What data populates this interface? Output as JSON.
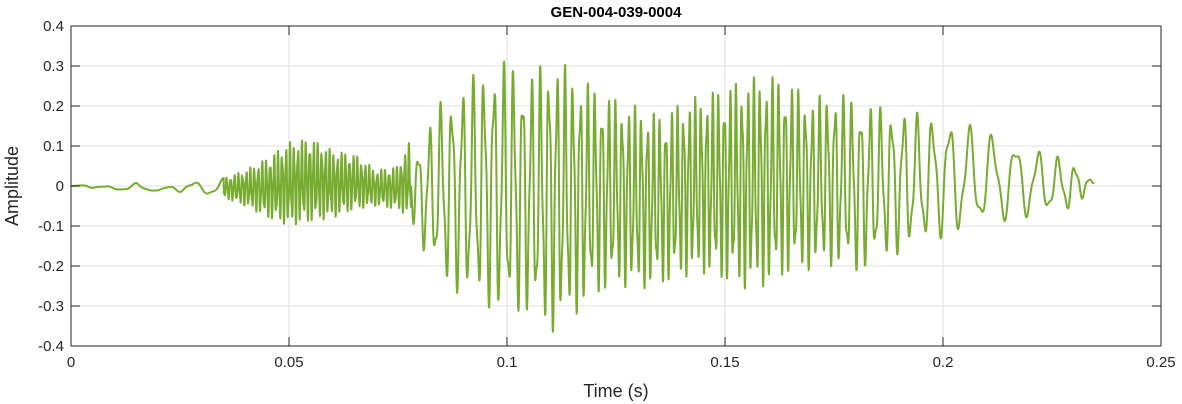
{
  "chart_data": {
    "type": "line",
    "title": "GEN-004-039-0004",
    "xlabel": "Time (s)",
    "ylabel": "Amplitude",
    "xlim": [
      0,
      0.25
    ],
    "ylim": [
      -0.4,
      0.4
    ],
    "xticks": [
      0,
      0.05,
      0.1,
      0.15,
      0.2,
      0.25
    ],
    "xtick_labels": [
      "0",
      "0.05",
      "0.1",
      "0.15",
      "0.2",
      "0.25"
    ],
    "yticks": [
      -0.4,
      -0.3,
      -0.2,
      -0.1,
      0,
      0.1,
      0.2,
      0.3,
      0.4
    ],
    "ytick_labels": [
      "-0.4",
      "-0.3",
      "-0.2",
      "-0.1",
      "0",
      "0.1",
      "0.2",
      "0.3",
      "0.4"
    ],
    "grid": true,
    "line_color": "#77AC30",
    "series": [
      {
        "x": [
          0,
          0.005,
          0.01,
          0.015,
          0.02,
          0.025,
          0.03,
          0.035,
          0.04,
          0.045,
          0.05,
          0.055,
          0.06,
          0.065,
          0.07,
          0.075,
          0.078,
          0.08,
          0.085,
          0.09,
          0.095,
          0.1,
          0.105,
          0.11,
          0.115,
          0.12,
          0.125,
          0.13,
          0.135,
          0.14,
          0.145,
          0.15,
          0.155,
          0.16,
          0.165,
          0.17,
          0.175,
          0.18,
          0.185,
          0.19,
          0.195,
          0.2,
          0.205,
          0.21,
          0.215,
          0.22,
          0.225,
          0.23,
          0.2345
        ],
        "values": [
          0.0,
          0.005,
          -0.003,
          0.008,
          -0.01,
          0.012,
          0.01,
          0.02,
          0.04,
          0.07,
          0.11,
          0.12,
          0.09,
          0.08,
          0.04,
          0.05,
          0.12,
          0.1,
          0.22,
          0.26,
          0.3,
          0.32,
          0.28,
          0.33,
          0.29,
          0.25,
          0.22,
          0.2,
          0.18,
          0.21,
          0.23,
          0.25,
          0.27,
          0.28,
          0.26,
          0.22,
          0.24,
          0.22,
          0.2,
          0.2,
          0.18,
          0.18,
          0.16,
          0.14,
          0.12,
          0.1,
          0.08,
          0.06,
          0.01
        ]
      },
      {
        "x": [
          0,
          0.005,
          0.01,
          0.015,
          0.02,
          0.025,
          0.03,
          0.035,
          0.04,
          0.045,
          0.05,
          0.055,
          0.06,
          0.065,
          0.07,
          0.075,
          0.078,
          0.08,
          0.085,
          0.09,
          0.095,
          0.1,
          0.105,
          0.11,
          0.115,
          0.12,
          0.125,
          0.13,
          0.135,
          0.14,
          0.145,
          0.15,
          0.155,
          0.16,
          0.165,
          0.17,
          0.175,
          0.18,
          0.185,
          0.19,
          0.195,
          0.2,
          0.205,
          0.21,
          0.215,
          0.22,
          0.225,
          0.23,
          0.2345
        ],
        "values": [
          0.0,
          -0.005,
          -0.01,
          -0.012,
          -0.012,
          -0.015,
          -0.02,
          -0.03,
          -0.05,
          -0.08,
          -0.1,
          -0.09,
          -0.08,
          -0.06,
          -0.05,
          -0.06,
          -0.08,
          -0.15,
          -0.24,
          -0.28,
          -0.3,
          -0.33,
          -0.32,
          -0.37,
          -0.33,
          -0.28,
          -0.25,
          -0.26,
          -0.25,
          -0.23,
          -0.22,
          -0.24,
          -0.26,
          -0.25,
          -0.22,
          -0.21,
          -0.2,
          -0.22,
          -0.19,
          -0.17,
          -0.15,
          -0.13,
          -0.12,
          -0.1,
          -0.09,
          -0.08,
          -0.07,
          -0.06,
          0.005
        ]
      }
    ]
  }
}
